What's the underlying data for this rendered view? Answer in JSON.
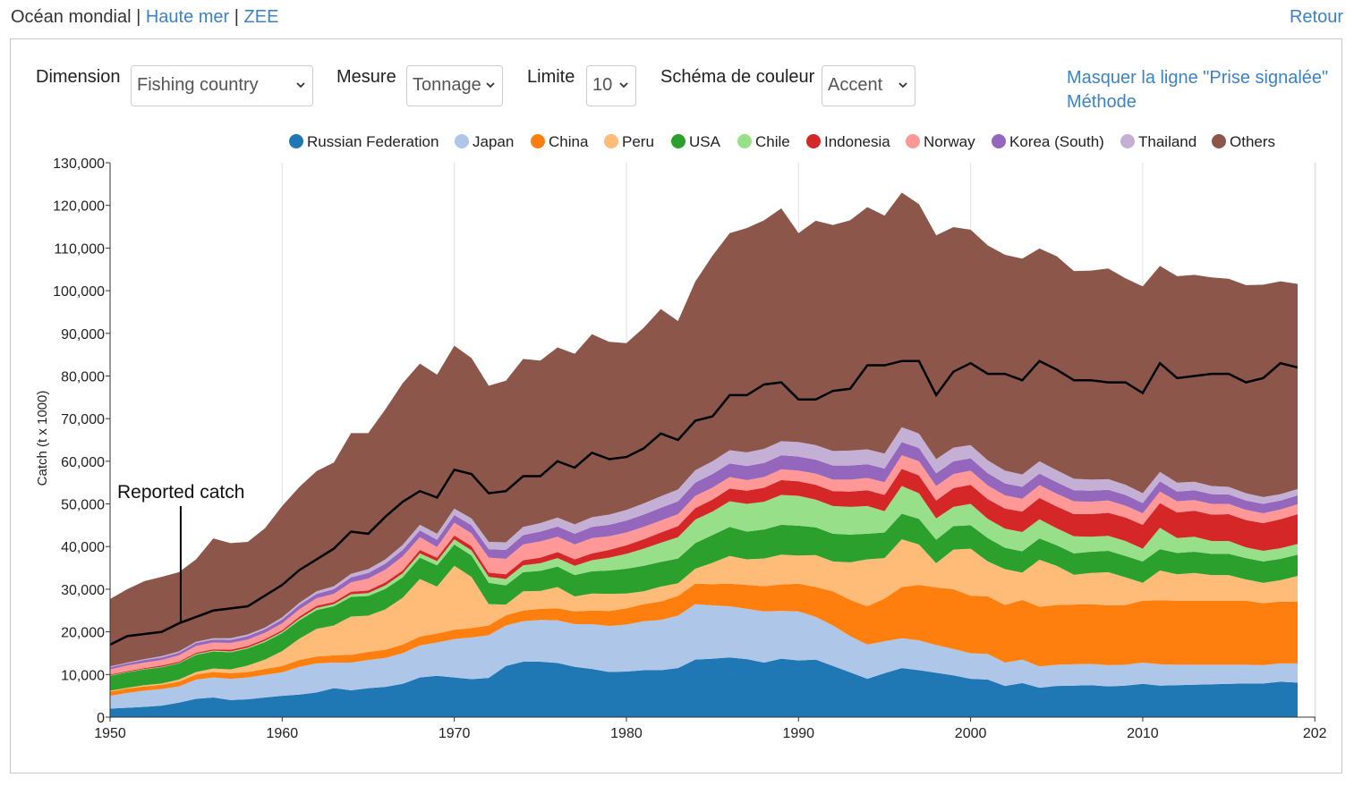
{
  "nav": {
    "ocean": "Océan mondial",
    "sep1": " | ",
    "high_seas": "Haute mer",
    "sep2": " | ",
    "eez": "ZEE",
    "back": "Retour"
  },
  "controls": {
    "dimension_label": "Dimension",
    "dimension_value": "Fishing country",
    "measure_label": "Mesure",
    "measure_value": "Tonnage",
    "limit_label": "Limite",
    "limit_value": "10",
    "color_label": "Schéma de couleur",
    "color_value": "Accent"
  },
  "links": {
    "hide_line": "Masquer la ligne \"Prise signalée\"",
    "method": "Méthode"
  },
  "icons": {
    "dropdown": "chevron-down-icon",
    "legend": "circle-icon"
  },
  "chart_data": {
    "type": "area",
    "stacked": true,
    "ylabel": "Catch (t x 1000)",
    "xlabel": "",
    "xlim": [
      1950,
      2020
    ],
    "ylim": [
      0,
      130000
    ],
    "x_ticks": [
      "1950",
      "1960",
      "1970",
      "1980",
      "1990",
      "2000",
      "2010",
      "202"
    ],
    "y_ticks": [
      "0",
      "10,000",
      "20,000",
      "30,000",
      "40,000",
      "50,000",
      "60,000",
      "70,000",
      "80,000",
      "90,000",
      "100,000",
      "110,000",
      "120,000",
      "130,000"
    ],
    "grid": "vertical",
    "legend_position": "top",
    "annotation": {
      "text": "Reported catch",
      "x": 1954,
      "y": 22000
    },
    "x": [
      1950,
      1951,
      1952,
      1953,
      1954,
      1955,
      1956,
      1957,
      1958,
      1959,
      1960,
      1961,
      1962,
      1963,
      1964,
      1965,
      1966,
      1967,
      1968,
      1969,
      1970,
      1971,
      1972,
      1973,
      1974,
      1975,
      1976,
      1977,
      1978,
      1979,
      1980,
      1981,
      1982,
      1983,
      1984,
      1985,
      1986,
      1987,
      1988,
      1989,
      1990,
      1991,
      1992,
      1993,
      1994,
      1995,
      1996,
      1997,
      1998,
      1999,
      2000,
      2001,
      2002,
      2003,
      2004,
      2005,
      2006,
      2007,
      2008,
      2009,
      2010,
      2011,
      2012,
      2013,
      2014,
      2015,
      2016,
      2017,
      2018,
      2019
    ],
    "series": [
      {
        "name": "Russian Federation",
        "color": "#1f77b4",
        "values": [
          2000,
          2200,
          2400,
          2700,
          3400,
          4300,
          4600,
          4000,
          4200,
          4600,
          5000,
          5300,
          5800,
          6800,
          6300,
          6800,
          7100,
          7800,
          9300,
          9700,
          9300,
          8900,
          9200,
          12000,
          13000,
          13000,
          12700,
          11800,
          11300,
          10600,
          10700,
          11000,
          11000,
          11500,
          13500,
          13700,
          14000,
          13600,
          12800,
          13700,
          13300,
          13500,
          12000,
          10500,
          9000,
          10300,
          11500,
          11000,
          10400,
          9800,
          9000,
          8800,
          7300,
          8000,
          6900,
          7300,
          7400,
          7500,
          7200,
          7400,
          7800,
          7400,
          7500,
          7600,
          7700,
          7800,
          7900,
          7900,
          8300,
          8100
        ]
      },
      {
        "name": "Japan",
        "color": "#aec7e8",
        "values": [
          3000,
          3500,
          3800,
          3900,
          3800,
          4500,
          4700,
          5000,
          5100,
          5300,
          5500,
          6500,
          6800,
          6000,
          6500,
          6600,
          6800,
          7200,
          7500,
          7800,
          9000,
          9800,
          10000,
          9500,
          9500,
          9800,
          10000,
          10000,
          10500,
          10800,
          11000,
          11500,
          11800,
          12300,
          13000,
          12500,
          12000,
          11800,
          12000,
          11200,
          11500,
          10000,
          9500,
          8500,
          8000,
          7500,
          7000,
          7000,
          6500,
          6200,
          6000,
          6000,
          5500,
          5500,
          5000,
          5000,
          5000,
          5000,
          5000,
          4900,
          5000,
          5000,
          4800,
          4700,
          4600,
          4500,
          4400,
          4300,
          4300,
          4500
        ]
      },
      {
        "name": "China",
        "color": "#ff7f0e",
        "values": [
          1000,
          1000,
          1000,
          1000,
          1100,
          1200,
          1300,
          1300,
          1300,
          1400,
          1500,
          1600,
          1600,
          1700,
          1800,
          1900,
          1900,
          2000,
          2100,
          2100,
          2200,
          2200,
          2300,
          2400,
          2500,
          2600,
          2800,
          3000,
          3200,
          3500,
          3800,
          4000,
          4300,
          4600,
          4800,
          5000,
          5300,
          5600,
          5900,
          6200,
          6500,
          7000,
          8000,
          8500,
          9000,
          10000,
          12000,
          13000,
          13500,
          14000,
          13500,
          13500,
          13500,
          14000,
          14000,
          14000,
          14000,
          14000,
          14000,
          14000,
          14500,
          15000,
          15000,
          15000,
          15000,
          15000,
          15000,
          14500,
          14500,
          14500
        ]
      },
      {
        "name": "Peru",
        "color": "#ffbb78",
        "values": [
          200,
          200,
          300,
          300,
          500,
          600,
          800,
          900,
          1500,
          2200,
          3500,
          5000,
          6500,
          7000,
          9000,
          8500,
          9500,
          11000,
          13500,
          11000,
          15000,
          12000,
          5000,
          2500,
          4500,
          4200,
          5000,
          3500,
          4000,
          4000,
          3500,
          3000,
          3500,
          3000,
          3500,
          5000,
          6500,
          6000,
          6500,
          7000,
          6600,
          7500,
          7000,
          8800,
          11000,
          9500,
          11200,
          9500,
          5700,
          9300,
          11000,
          8200,
          8400,
          6400,
          11000,
          9200,
          7000,
          7300,
          7800,
          6500,
          4200,
          7000,
          6200,
          6500,
          6000,
          6000,
          5000,
          4800,
          5000,
          6000
        ]
      },
      {
        "name": "USA",
        "color": "#2ca02c",
        "values": [
          3500,
          3600,
          3700,
          3800,
          3800,
          4000,
          4000,
          4000,
          4000,
          4100,
          4200,
          4300,
          4400,
          4500,
          4600,
          4600,
          4800,
          4800,
          5000,
          5000,
          5000,
          5000,
          5000,
          4500,
          4500,
          4700,
          4800,
          5000,
          5200,
          5500,
          5800,
          6000,
          5800,
          5800,
          6000,
          6500,
          6800,
          6500,
          6800,
          7000,
          7000,
          6500,
          6500,
          6500,
          6000,
          6000,
          6000,
          6000,
          5500,
          5500,
          5500,
          5500,
          5000,
          5000,
          5000,
          4800,
          5000,
          5000,
          5000,
          5000,
          5000,
          5000,
          5000,
          5000,
          5000,
          5000,
          5000,
          5000,
          5000,
          5000
        ]
      },
      {
        "name": "Chile",
        "color": "#98df8a",
        "values": [
          100,
          100,
          100,
          100,
          100,
          200,
          200,
          200,
          200,
          300,
          300,
          400,
          500,
          500,
          600,
          700,
          800,
          900,
          1000,
          1000,
          1200,
          1200,
          1400,
          1500,
          1600,
          1800,
          2000,
          2200,
          2600,
          3000,
          3500,
          4000,
          4500,
          5000,
          5500,
          5500,
          6000,
          6500,
          6500,
          7000,
          7000,
          6500,
          6500,
          6500,
          6500,
          5000,
          6500,
          6000,
          5000,
          4500,
          5000,
          4500,
          4500,
          4500,
          4500,
          4000,
          4000,
          3500,
          3500,
          3500,
          3000,
          5000,
          3500,
          3500,
          3000,
          3000,
          2500,
          2500,
          2500,
          2500
        ]
      },
      {
        "name": "Indonesia",
        "color": "#d62728",
        "values": [
          200,
          200,
          200,
          300,
          300,
          300,
          300,
          400,
          400,
          400,
          400,
          500,
          500,
          500,
          600,
          600,
          700,
          700,
          800,
          800,
          900,
          1000,
          1000,
          1100,
          1200,
          1300,
          1400,
          1500,
          1600,
          1800,
          2000,
          2200,
          2400,
          2600,
          2700,
          2800,
          3000,
          3100,
          3300,
          3500,
          3400,
          3500,
          3500,
          3600,
          3700,
          3800,
          4000,
          4200,
          4200,
          4400,
          4500,
          4600,
          4700,
          4800,
          5000,
          5100,
          5200,
          5300,
          5400,
          5500,
          5600,
          5800,
          6000,
          6100,
          6200,
          6300,
          6400,
          6500,
          6800,
          7000
        ]
      },
      {
        "name": "Norway",
        "color": "#ff9896",
        "values": [
          1200,
          1300,
          1300,
          1300,
          1500,
          1600,
          1600,
          1600,
          1500,
          1500,
          1600,
          1700,
          1800,
          1900,
          2200,
          2800,
          3000,
          3300,
          3000,
          2500,
          3000,
          3000,
          3500,
          3600,
          3700,
          3800,
          3600,
          3500,
          3600,
          3200,
          3000,
          2900,
          2800,
          2800,
          2900,
          2800,
          2700,
          2500,
          2500,
          2500,
          2500,
          2600,
          2700,
          2800,
          2900,
          3000,
          3200,
          3300,
          3400,
          3300,
          3300,
          3200,
          3100,
          3000,
          3000,
          3000,
          3000,
          2900,
          2900,
          2800,
          2700,
          2700,
          2600,
          2500,
          2500,
          2400,
          2400,
          2300,
          2300,
          2300
        ]
      },
      {
        "name": "Korea (South)",
        "color": "#9467bd",
        "values": [
          500,
          500,
          600,
          600,
          600,
          700,
          700,
          700,
          800,
          800,
          900,
          1000,
          1000,
          1100,
          1200,
          1300,
          1400,
          1500,
          1600,
          1700,
          1800,
          1900,
          2000,
          2100,
          2200,
          2300,
          2400,
          2500,
          2600,
          2700,
          2800,
          2900,
          3000,
          3000,
          3100,
          3200,
          3200,
          3300,
          3300,
          3300,
          3300,
          3300,
          3300,
          3300,
          3200,
          3200,
          3100,
          3100,
          3000,
          3000,
          2900,
          2900,
          2800,
          2800,
          2700,
          2700,
          2600,
          2600,
          2500,
          2500,
          2400,
          2400,
          2300,
          2300,
          2300,
          2200,
          2200,
          2200,
          2100,
          2100
        ]
      },
      {
        "name": "Thailand",
        "color": "#c5b0d5",
        "values": [
          200,
          200,
          200,
          300,
          300,
          300,
          300,
          400,
          400,
          400,
          500,
          500,
          600,
          700,
          800,
          900,
          1000,
          1200,
          1300,
          1400,
          1500,
          1600,
          1700,
          1800,
          1900,
          2000,
          2100,
          2200,
          2300,
          2400,
          2500,
          2600,
          2700,
          2800,
          2900,
          3000,
          3100,
          3200,
          3300,
          3300,
          3400,
          3400,
          3400,
          3500,
          3500,
          3500,
          3500,
          3400,
          3300,
          3200,
          3100,
          3000,
          3000,
          2900,
          2900,
          2800,
          2700,
          2600,
          2500,
          2400,
          2300,
          2200,
          2100,
          2000,
          1900,
          1800,
          1700,
          1600,
          1500,
          1500
        ]
      },
      {
        "name": "Others",
        "color": "#8c564b",
        "values": [
          15800,
          17200,
          18300,
          18600,
          18600,
          19300,
          23400,
          22300,
          21700,
          23300,
          26100,
          27200,
          28200,
          29000,
          33000,
          31900,
          35200,
          37900,
          37800,
          37300,
          38200,
          37600,
          36600,
          37900,
          39400,
          38100,
          39900,
          40000,
          42900,
          40500,
          39100,
          41200,
          43900,
          39500,
          44200,
          48200,
          50900,
          52600,
          53600,
          54600,
          49000,
          52600,
          53000,
          54000,
          56800,
          55800,
          55000,
          53800,
          52500,
          51700,
          50500,
          50400,
          50600,
          50600,
          49900,
          50200,
          48700,
          49000,
          49400,
          48400,
          48500,
          48300,
          48400,
          48500,
          48900,
          48800,
          48800,
          49800,
          49900,
          48100
        ]
      }
    ],
    "reported_catch": {
      "name": "Reported catch",
      "color": "#000000",
      "values": [
        17000,
        19000,
        19500,
        20000,
        22000,
        23500,
        25000,
        25500,
        26000,
        28500,
        31000,
        34500,
        37000,
        39500,
        43500,
        43000,
        47000,
        50500,
        53000,
        51500,
        58000,
        57000,
        52500,
        53000,
        56500,
        56500,
        60000,
        58500,
        62000,
        60500,
        61000,
        63000,
        66500,
        65000,
        69500,
        70500,
        75500,
        75500,
        78000,
        78500,
        74500,
        74500,
        76500,
        77000,
        82500,
        82500,
        83500,
        83500,
        75500,
        81000,
        83000,
        80500,
        80500,
        79000,
        83500,
        81500,
        79000,
        79000,
        78500,
        78500,
        76000,
        83000,
        79500,
        80000,
        80500,
        80500,
        78500,
        79500,
        83000,
        82000
      ]
    }
  }
}
